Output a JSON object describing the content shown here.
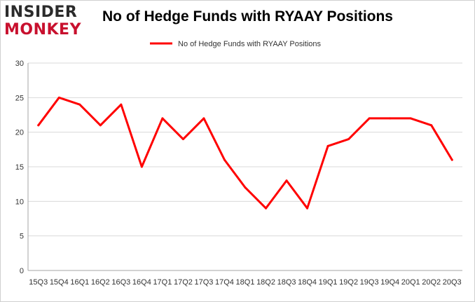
{
  "branding": {
    "logo_top": "INSIDER",
    "logo_bottom": "MONKEY"
  },
  "chart_data": {
    "type": "line",
    "title": "No of Hedge Funds with RYAAY Positions",
    "xlabel": "",
    "ylabel": "",
    "ylim": [
      0,
      30
    ],
    "yticks": [
      0,
      5,
      10,
      15,
      20,
      25,
      30
    ],
    "grid": true,
    "legend_position": "top-center",
    "categories": [
      "15Q3",
      "15Q4",
      "16Q1",
      "16Q2",
      "16Q3",
      "16Q4",
      "17Q1",
      "17Q2",
      "17Q3",
      "17Q4",
      "18Q1",
      "18Q2",
      "18Q3",
      "18Q4",
      "19Q1",
      "19Q2",
      "19Q3",
      "19Q4",
      "20Q1",
      "20Q2",
      "20Q3"
    ],
    "series": [
      {
        "name": "No of Hedge Funds with RYAAY Positions",
        "color": "#ff0000",
        "values": [
          21,
          25,
          24,
          21,
          24,
          15,
          22,
          19,
          22,
          16,
          12,
          9,
          13,
          9,
          18,
          19,
          22,
          22,
          22,
          21,
          16
        ]
      }
    ]
  }
}
